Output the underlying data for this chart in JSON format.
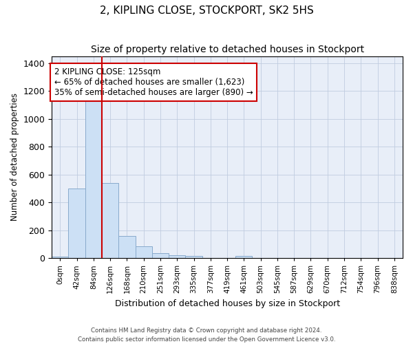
{
  "title": "2, KIPLING CLOSE, STOCKPORT, SK2 5HS",
  "subtitle": "Size of property relative to detached houses in Stockport",
  "xlabel": "Distribution of detached houses by size in Stockport",
  "ylabel": "Number of detached properties",
  "bin_labels": [
    "0sqm",
    "42sqm",
    "84sqm",
    "126sqm",
    "168sqm",
    "210sqm",
    "251sqm",
    "293sqm",
    "335sqm",
    "377sqm",
    "419sqm",
    "461sqm",
    "503sqm",
    "545sqm",
    "587sqm",
    "629sqm",
    "670sqm",
    "712sqm",
    "754sqm",
    "796sqm",
    "838sqm"
  ],
  "bar_heights": [
    12,
    500,
    1150,
    540,
    160,
    85,
    35,
    22,
    15,
    0,
    0,
    15,
    0,
    0,
    0,
    0,
    0,
    0,
    0,
    0,
    0
  ],
  "bar_color": "#cce0f5",
  "bar_edge_color": "#88aacc",
  "red_line_x": 3,
  "highlight_color": "#cc0000",
  "annotation_text": "2 KIPLING CLOSE: 125sqm\n← 65% of detached houses are smaller (1,623)\n35% of semi-detached houses are larger (890) →",
  "annotation_box_color": "#ffffff",
  "annotation_box_edge": "#cc0000",
  "ylim": [
    0,
    1450
  ],
  "yticks": [
    0,
    200,
    400,
    600,
    800,
    1000,
    1200,
    1400
  ],
  "background_color": "#e8eef8",
  "grid_color": "#c0cce0",
  "footer_text": "Contains HM Land Registry data © Crown copyright and database right 2024.\nContains public sector information licensed under the Open Government Licence v3.0.",
  "title_fontsize": 11,
  "subtitle_fontsize": 10,
  "xlabel_fontsize": 9,
  "ylabel_fontsize": 8.5,
  "annotation_fontsize": 8.5
}
